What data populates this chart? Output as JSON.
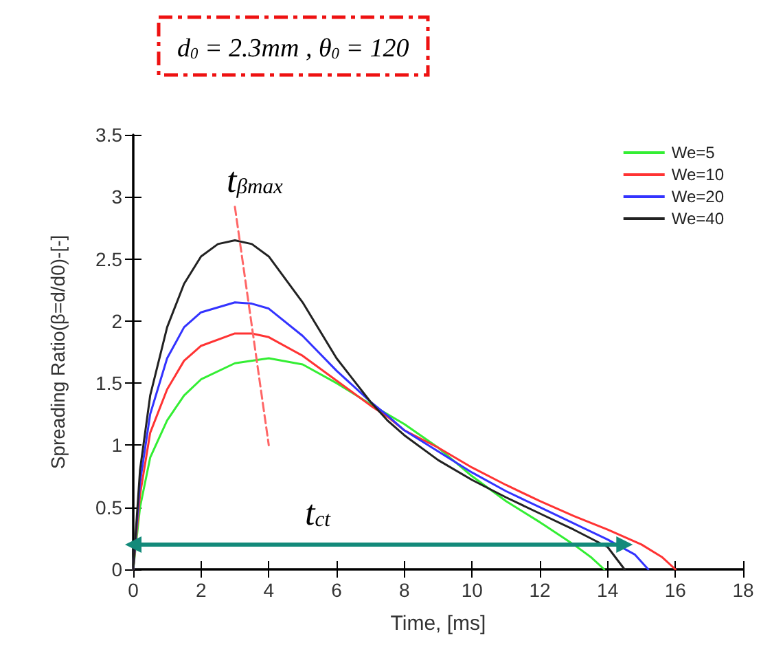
{
  "chart_data": {
    "type": "line",
    "title": "d$_{0}$ = 2.3mm , θ$_{0}$ = 120",
    "xlabel": "Time, [ms]",
    "ylabel": "Spreading Ratio(β=d/d0)-[-]",
    "xlim": [
      0,
      18
    ],
    "xticks": [
      0,
      2,
      4,
      6,
      8,
      10,
      12,
      14,
      16,
      18
    ],
    "ylim": [
      0,
      3.5
    ],
    "yticks": [
      0,
      0.5,
      1,
      1.5,
      2,
      2.5,
      3,
      3.5
    ],
    "grid": false,
    "legend": "top right",
    "marker": "none",
    "line_style": "solid",
    "series": [
      {
        "name": "We=5",
        "color": "#33ee33",
        "x": [
          0,
          0.2,
          0.5,
          1,
          1.5,
          2,
          3,
          4,
          5,
          6,
          7,
          8,
          9,
          10,
          11,
          12,
          13,
          13.5,
          13.9
        ],
        "values": [
          0,
          0.5,
          0.9,
          1.2,
          1.4,
          1.53,
          1.66,
          1.7,
          1.65,
          1.5,
          1.33,
          1.17,
          0.98,
          0.75,
          0.55,
          0.38,
          0.2,
          0.1,
          0
        ]
      },
      {
        "name": "We=10",
        "color": "#ff3333",
        "x": [
          0,
          0.2,
          0.5,
          1,
          1.5,
          2,
          3,
          3.5,
          4,
          5,
          6,
          7,
          7.5,
          8,
          9,
          10,
          11,
          12,
          13,
          14,
          15,
          15.6,
          16
        ],
        "values": [
          0,
          0.6,
          1.1,
          1.45,
          1.68,
          1.8,
          1.9,
          1.9,
          1.87,
          1.72,
          1.52,
          1.32,
          1.23,
          1.12,
          0.98,
          0.82,
          0.68,
          0.55,
          0.43,
          0.32,
          0.2,
          0.1,
          0
        ]
      },
      {
        "name": "We=20",
        "color": "#3333ff",
        "x": [
          0,
          0.2,
          0.5,
          1,
          1.5,
          2,
          3,
          3.5,
          4,
          5,
          6,
          7,
          7.5,
          8,
          9,
          10,
          11,
          12,
          13,
          14,
          14.8,
          15.2
        ],
        "values": [
          0,
          0.7,
          1.25,
          1.7,
          1.95,
          2.07,
          2.15,
          2.14,
          2.1,
          1.88,
          1.6,
          1.35,
          1.24,
          1.12,
          0.95,
          0.78,
          0.63,
          0.5,
          0.37,
          0.24,
          0.12,
          0
        ]
      },
      {
        "name": "We=40",
        "color": "#222222",
        "x": [
          0,
          0.2,
          0.5,
          1,
          1.5,
          2,
          2.5,
          3,
          3.5,
          4,
          5,
          6,
          7,
          7.5,
          8,
          9,
          10,
          11,
          12,
          13,
          14,
          14.5
        ],
        "values": [
          0,
          0.8,
          1.4,
          1.95,
          2.3,
          2.52,
          2.62,
          2.65,
          2.62,
          2.52,
          2.15,
          1.7,
          1.35,
          1.2,
          1.08,
          0.88,
          0.72,
          0.58,
          0.45,
          0.32,
          0.18,
          0
        ]
      },
      {
        "color": "#ff6666",
        "line_style": "dashed",
        "x": [
          3.0,
          4.0
        ],
        "values": [
          2.92,
          1.0
        ]
      },
      {
        "color": "#138a7a",
        "marker": "triangle",
        "x": [
          0,
          14.5
        ],
        "values": [
          0.2,
          0.2
        ]
      }
    ],
    "annotations": [
      "t$_{βmax}$",
      "t$_{ct}$"
    ]
  }
}
